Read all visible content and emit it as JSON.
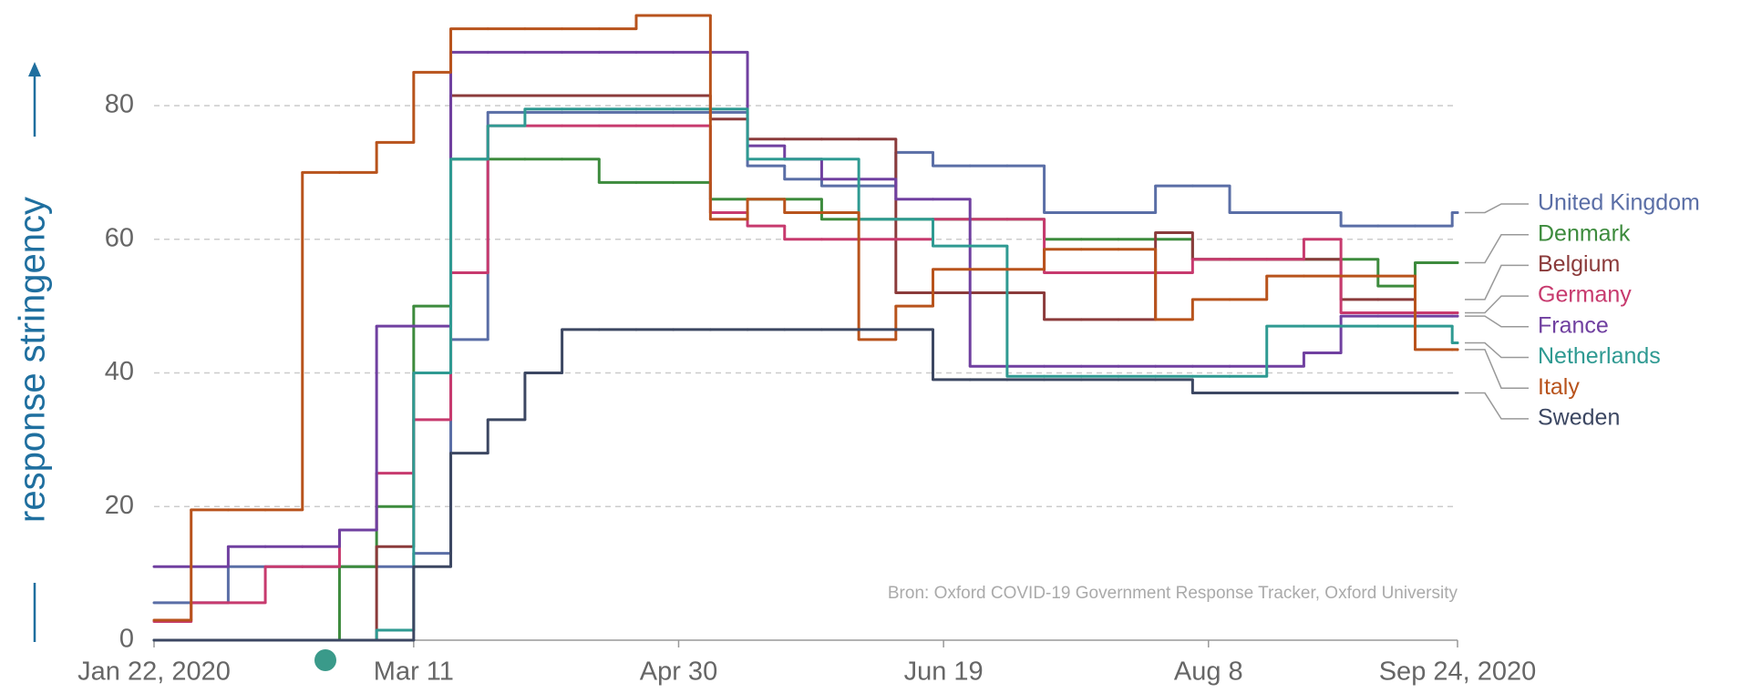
{
  "chart_data": {
    "type": "line",
    "y_label": "response stringency",
    "source": "Bron: Oxford COVID-19 Government Response Tracker, Oxford University",
    "x": [
      "2020-01-22",
      "2020-01-29",
      "2020-02-05",
      "2020-02-12",
      "2020-02-19",
      "2020-02-26",
      "2020-03-04",
      "2020-03-11",
      "2020-03-18",
      "2020-03-25",
      "2020-04-01",
      "2020-04-08",
      "2020-04-15",
      "2020-04-22",
      "2020-04-29",
      "2020-05-06",
      "2020-05-13",
      "2020-05-20",
      "2020-05-27",
      "2020-06-03",
      "2020-06-10",
      "2020-06-17",
      "2020-06-24",
      "2020-07-01",
      "2020-07-08",
      "2020-07-15",
      "2020-07-22",
      "2020-07-29",
      "2020-08-05",
      "2020-08-12",
      "2020-08-19",
      "2020-08-26",
      "2020-09-02",
      "2020-09-09",
      "2020-09-16",
      "2020-09-23",
      "2020-09-24"
    ],
    "xlim": [
      "2020-01-22",
      "2020-09-24"
    ],
    "xticks": [
      {
        "value": "2020-01-22",
        "label": "Jan 22, 2020"
      },
      {
        "value": "2020-03-11",
        "label": "Mar 11"
      },
      {
        "value": "2020-04-30",
        "label": "Apr 30"
      },
      {
        "value": "2020-06-19",
        "label": "Jun 19"
      },
      {
        "value": "2020-08-08",
        "label": "Aug 8"
      },
      {
        "value": "2020-09-24",
        "label": "Sep 24, 2020"
      }
    ],
    "ylim": [
      0,
      95
    ],
    "yticks": [
      0,
      20,
      40,
      60,
      80
    ],
    "grid": true,
    "series": [
      {
        "name": "United Kingdom",
        "color": "#5a6ea6",
        "values": [
          5.6,
          5.6,
          11,
          11,
          11,
          11,
          11,
          13,
          45,
          79,
          79,
          79,
          79,
          79,
          79,
          79,
          71,
          69,
          68,
          68,
          73,
          71,
          71,
          71,
          64,
          64,
          64,
          68,
          68,
          64,
          64,
          64,
          62,
          62,
          62,
          64,
          64
        ]
      },
      {
        "name": "Denmark",
        "color": "#3d8b3d",
        "values": [
          0,
          0,
          0,
          0,
          0,
          11,
          20,
          50,
          72,
          72,
          72,
          72,
          68.5,
          68.5,
          68.5,
          66,
          66,
          66,
          63,
          63,
          63,
          63,
          63,
          63,
          60,
          60,
          60,
          60,
          57,
          57,
          57,
          57,
          57,
          53,
          56.5,
          56.5,
          56.5
        ]
      },
      {
        "name": "Belgium",
        "color": "#8b3b3b",
        "values": [
          0,
          0,
          0,
          0,
          0,
          0,
          14,
          40,
          81.5,
          81.5,
          81.5,
          81.5,
          81.5,
          81.5,
          81.5,
          78,
          75,
          75,
          75,
          75,
          52,
          52,
          52,
          52,
          48,
          48,
          48,
          61,
          57,
          57,
          57,
          57,
          51,
          51,
          51,
          null,
          null
        ]
      },
      {
        "name": "Germany",
        "color": "#c73a6e",
        "values": [
          2.8,
          5.6,
          5.6,
          11,
          11,
          16.5,
          25,
          33,
          55,
          77,
          77,
          77,
          77,
          77,
          77,
          64,
          62,
          60,
          60,
          60,
          60,
          63,
          63,
          63,
          55,
          55,
          55,
          55,
          57,
          57,
          57,
          60,
          49,
          49,
          49,
          49,
          49
        ]
      },
      {
        "name": "France",
        "color": "#7040a0",
        "values": [
          11,
          11,
          14,
          14,
          14,
          16.5,
          47,
          47,
          88,
          88,
          88,
          88,
          88,
          88,
          88,
          88,
          74,
          72,
          69,
          69,
          66,
          66,
          41,
          41,
          41,
          41,
          41,
          41,
          41,
          41,
          41,
          43,
          48.5,
          48.5,
          48.5,
          48.5,
          48.5
        ]
      },
      {
        "name": "Netherlands",
        "color": "#2f9a92",
        "values": [
          0,
          0,
          0,
          0,
          0,
          0,
          1.5,
          40,
          72,
          77,
          79.5,
          79.5,
          79.5,
          79.5,
          79.5,
          79.5,
          72,
          72,
          72,
          63,
          63,
          59,
          59,
          39.5,
          39.5,
          39.5,
          39.5,
          39.5,
          39.5,
          39.5,
          47,
          47,
          47,
          47,
          47,
          44.5,
          44.5
        ]
      },
      {
        "name": "Italy",
        "color": "#b8531c",
        "values": [
          3,
          19.5,
          19.5,
          19.5,
          70,
          70,
          74.5,
          85,
          91.5,
          91.5,
          91.5,
          91.5,
          91.5,
          93.5,
          93.5,
          63,
          66,
          64,
          64,
          45,
          50,
          55.5,
          55.5,
          55.5,
          58.5,
          58.5,
          58.5,
          48,
          51,
          51,
          54.5,
          54.5,
          54.5,
          54.5,
          43.5,
          43.5,
          43.5
        ]
      },
      {
        "name": "Sweden",
        "color": "#3c4762",
        "values": [
          0,
          0,
          0,
          0,
          0,
          0,
          0,
          11,
          28,
          33,
          40,
          46.5,
          46.5,
          46.5,
          46.5,
          46.5,
          46.5,
          46.5,
          46.5,
          46.5,
          46.5,
          39,
          39,
          39,
          39,
          39,
          39,
          39,
          37,
          37,
          37,
          37,
          37,
          37,
          37,
          37,
          37
        ]
      }
    ]
  }
}
